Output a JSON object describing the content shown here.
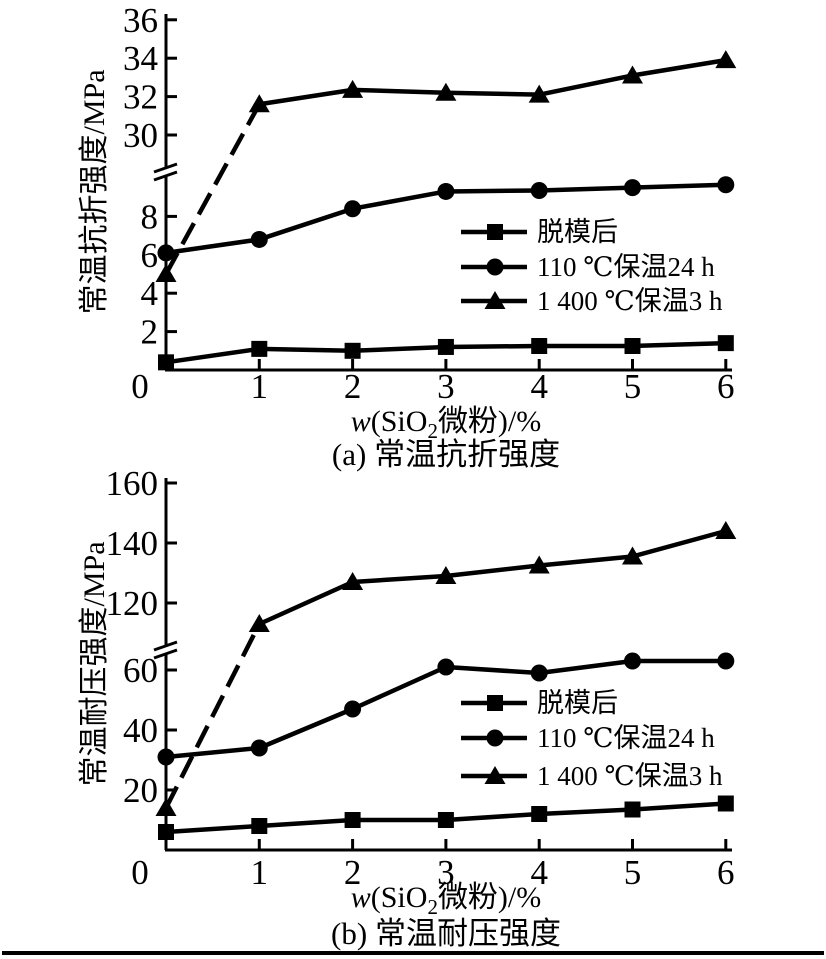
{
  "figure": {
    "description_caption_a": "(a) 常温抗折强度",
    "description_caption_b": "(b) 常温耐压强度"
  },
  "colors": {
    "ink": "#000000",
    "background": "#ffffff"
  },
  "chart_data": [
    {
      "type": "line",
      "caption": "(a) 常温抗折强度",
      "xlabel": "w(SiO2微粉)/%",
      "xlabel_parts": {
        "italic": "w",
        "open": "(SiO",
        "sub": "2",
        "rest": "微粉)/%"
      },
      "ylabel": "常温抗折强度/MPa",
      "x": [
        0,
        1,
        2,
        3,
        4,
        5,
        6
      ],
      "x_tick_labels": [
        "0",
        "1",
        "2",
        "3",
        "4",
        "5",
        "6"
      ],
      "y_lower_ticks": [
        2,
        4,
        6,
        8
      ],
      "y_upper_ticks": [
        30,
        32,
        34,
        36
      ],
      "axis_break": true,
      "ylim_lower": [
        0,
        10.3
      ],
      "ylim_upper": [
        29.3,
        36
      ],
      "grid": false,
      "legend_position": "inside-right",
      "series": [
        {
          "name": "脱模后",
          "marker": "square",
          "values": [
            0.4,
            1.1,
            1.0,
            1.2,
            1.25,
            1.25,
            1.4
          ]
        },
        {
          "name": "110 ℃保温24 h",
          "marker": "circle",
          "values": [
            6.1,
            6.8,
            8.4,
            9.3,
            9.35,
            9.5,
            9.65
          ]
        },
        {
          "name": "1 400 ℃保温3 h",
          "marker": "triangle",
          "values": [
            5.0,
            31.6,
            32.35,
            32.2,
            32.1,
            33.1,
            33.9
          ]
        }
      ]
    },
    {
      "type": "line",
      "caption": "(b) 常温耐压强度",
      "xlabel": "w(SiO2微粉)/%",
      "xlabel_parts": {
        "italic": "w",
        "open": "(SiO",
        "sub": "2",
        "rest": "微粉)/%"
      },
      "ylabel": "常温耐压强度/MPa",
      "x": [
        0,
        1,
        2,
        3,
        4,
        5,
        6
      ],
      "x_tick_labels": [
        "0",
        "1",
        "2",
        "3",
        "4",
        "5",
        "6"
      ],
      "y_lower_ticks": [
        20,
        40,
        60
      ],
      "y_upper_ticks": [
        120,
        140,
        160
      ],
      "axis_break": true,
      "ylim_lower": [
        0,
        66.5
      ],
      "ylim_upper": [
        104.5,
        160
      ],
      "grid": false,
      "legend_position": "inside-right",
      "series": [
        {
          "name": "脱模后",
          "marker": "square",
          "values": [
            6,
            8,
            10,
            10,
            12,
            13.5,
            15.5
          ]
        },
        {
          "name": "110 ℃保温24 h",
          "marker": "circle",
          "values": [
            31,
            34,
            47,
            61,
            59,
            63,
            63
          ]
        },
        {
          "name": "1 400 ℃保温3 h",
          "marker": "triangle",
          "values": [
            14,
            113,
            127,
            129,
            132.5,
            135.5,
            144
          ]
        }
      ]
    }
  ]
}
